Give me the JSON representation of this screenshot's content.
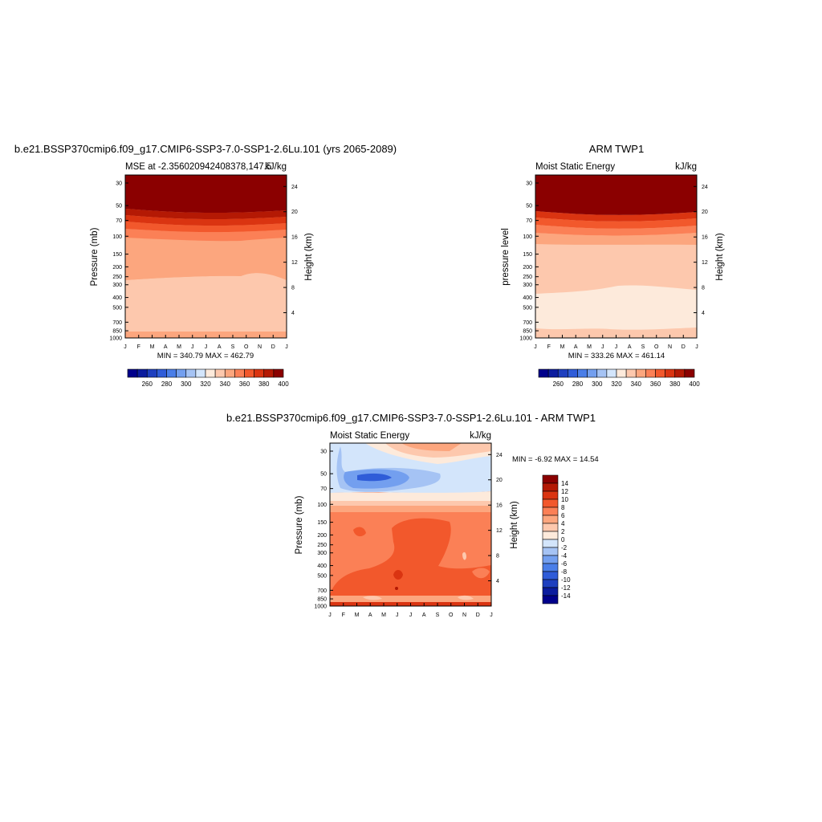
{
  "colors": {
    "palette": [
      "#00008b",
      "#0b1c9e",
      "#1e3fbf",
      "#2f5cd8",
      "#4a7ee8",
      "#739fef",
      "#a5c3f4",
      "#d3e5fb",
      "#fdeadb",
      "#fdc8ad",
      "#fca67e",
      "#fb8056",
      "#f2582c",
      "#da3411",
      "#b41904",
      "#8b0000"
    ]
  },
  "months": [
    "J",
    "F",
    "M",
    "A",
    "M",
    "J",
    "J",
    "A",
    "S",
    "O",
    "N",
    "D",
    "J"
  ],
  "pressure_ticks": [
    "30",
    "50",
    "70",
    "100",
    "150",
    "200",
    "250",
    "300",
    "400",
    "500",
    "700",
    "850",
    "1000"
  ],
  "height_ticks": [
    "4",
    "8",
    "12",
    "16",
    "20",
    "24"
  ],
  "colorbar_labels": [
    "260",
    "280",
    "300",
    "320",
    "340",
    "360",
    "380",
    "400"
  ],
  "diff_colorbar_labels": [
    "14",
    "12",
    "10",
    "8",
    "6",
    "4",
    "2",
    "0",
    "-2",
    "-4",
    "-6",
    "-8",
    "-10",
    "-12",
    "-14"
  ],
  "panel1": {
    "title": "b.e21.BSSP370cmip6.f09_g17.CMIP6-SSP3-7.0-SSP1-2.6Lu.101 (yrs 2065-2089)",
    "left_string": "MSE at -2.356020942408378,147.5",
    "right_string": "kJ/kg",
    "ylabel": "Pressure (mb)",
    "y2label": "Height (km)",
    "minmax": "MIN = 340.79 MAX = 462.79"
  },
  "panel2": {
    "title": "ARM TWP1",
    "left_string": "Moist Static Energy",
    "right_string": "kJ/kg",
    "ylabel": "pressure level",
    "y2label": "Height (km)",
    "minmax": "MIN = 333.26 MAX = 461.14"
  },
  "panel3": {
    "title": "b.e21.BSSP370cmip6.f09_g17.CMIP6-SSP3-7.0-SSP1-2.6Lu.101 - ARM TWP1",
    "left_string": "Moist Static Energy",
    "right_string": "kJ/kg",
    "ylabel": "Pressure (mb)",
    "y2label": "Height (km)",
    "minmax": "MIN =  -6.92 MAX =  14.54"
  },
  "chart_data": [
    {
      "type": "heatmap",
      "title": "b.e21.BSSP370cmip6.f09_g17.CMIP6-SSP3-7.0-SSP1-2.6Lu.101 (yrs 2065-2089)",
      "subtitle": "MSE at -2.356020942408378,147.5",
      "units": "kJ/kg",
      "x": [
        "J",
        "F",
        "M",
        "A",
        "M",
        "J",
        "J",
        "A",
        "S",
        "O",
        "N",
        "D",
        "J"
      ],
      "y_pressure_mb": [
        30,
        50,
        70,
        100,
        150,
        200,
        250,
        300,
        400,
        500,
        700,
        850,
        1000
      ],
      "xlabel": "",
      "ylabel": "Pressure (mb)",
      "y2label": "Height (km)",
      "min": 340.79,
      "max": 462.79,
      "contour_levels": [
        260,
        270,
        280,
        290,
        300,
        310,
        320,
        330,
        340,
        350,
        360,
        370,
        380,
        390,
        400
      ],
      "layers_from_top": [
        {
          "value_range": ">400",
          "bottom_pressure_mb": 55
        },
        {
          "value_range": "390-400",
          "bottom_pressure_mb": 62
        },
        {
          "value_range": "380-390",
          "bottom_pressure_mb": 70
        },
        {
          "value_range": "370-380",
          "bottom_pressure_mb": 80
        },
        {
          "value_range": "360-370",
          "bottom_pressure_mb": 92
        },
        {
          "value_range": "350-360",
          "bottom_pressure_mb": 105
        },
        {
          "value_range": "340-350",
          "bottom_pressure_mb": 250
        },
        {
          "value_range": "330-340",
          "bottom_pressure_mb": 900
        }
      ]
    },
    {
      "type": "heatmap",
      "title": "ARM TWP1",
      "subtitle": "Moist Static Energy",
      "units": "kJ/kg",
      "x": [
        "J",
        "F",
        "M",
        "A",
        "M",
        "J",
        "J",
        "A",
        "S",
        "O",
        "N",
        "D",
        "J"
      ],
      "y_pressure_mb": [
        30,
        50,
        70,
        100,
        150,
        200,
        250,
        300,
        400,
        500,
        700,
        850,
        1000
      ],
      "xlabel": "",
      "ylabel": "pressure level",
      "y2label": "Height (km)",
      "min": 333.26,
      "max": 461.14,
      "contour_levels": [
        260,
        270,
        280,
        290,
        300,
        310,
        320,
        330,
        340,
        350,
        360,
        370,
        380,
        390,
        400
      ]
    },
    {
      "type": "heatmap",
      "title": "b.e21.BSSP370cmip6.f09_g17.CMIP6-SSP3-7.0-SSP1-2.6Lu.101 - ARM TWP1",
      "subtitle": "Moist Static Energy",
      "units": "kJ/kg",
      "x": [
        "J",
        "F",
        "M",
        "A",
        "M",
        "J",
        "J",
        "A",
        "S",
        "O",
        "N",
        "D",
        "J"
      ],
      "y_pressure_mb": [
        30,
        50,
        70,
        100,
        150,
        200,
        250,
        300,
        400,
        500,
        700,
        850,
        1000
      ],
      "xlabel": "",
      "ylabel": "Pressure (mb)",
      "y2label": "Height (km)",
      "min": -6.92,
      "max": 14.54,
      "contour_levels": [
        -14,
        -12,
        -10,
        -8,
        -6,
        -4,
        -2,
        0,
        2,
        4,
        6,
        8,
        10,
        12,
        14
      ]
    }
  ]
}
